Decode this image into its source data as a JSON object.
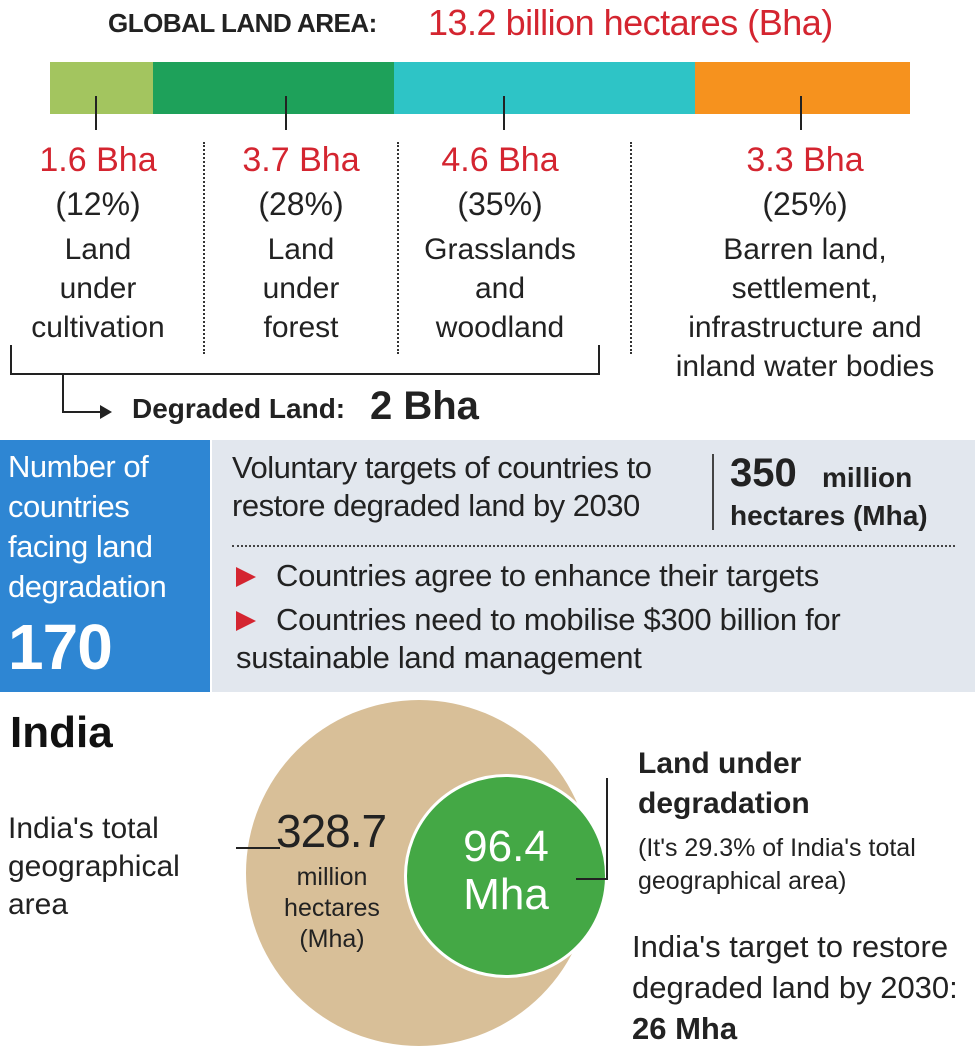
{
  "header": {
    "label": "GLOBAL LAND AREA:",
    "value": "13.2 billion hectares (Bha)"
  },
  "land_categories": [
    {
      "value": "1.6 Bha",
      "percent": "(12%)",
      "share": 0.12,
      "color": "#a3c55f",
      "description": [
        "Land",
        "under",
        "cultivation"
      ]
    },
    {
      "value": "3.7 Bha",
      "percent": "(28%)",
      "share": 0.28,
      "color": "#1ea15a",
      "description": [
        "Land",
        "under",
        "forest"
      ]
    },
    {
      "value": "4.6 Bha",
      "percent": "(35%)",
      "share": 0.35,
      "color": "#2ec4c6",
      "description": [
        "Grasslands",
        "and",
        "woodland"
      ]
    },
    {
      "value": "3.3 Bha",
      "percent": "(25%)",
      "share": 0.25,
      "color": "#f6921e",
      "description": [
        "Barren land,",
        "settlement,",
        "infrastructure and",
        "inland water bodies"
      ]
    }
  ],
  "degraded": {
    "label": "Degraded Land:",
    "value": "2 Bha"
  },
  "countries": {
    "label": "Number of countries facing land degradation",
    "value": "170"
  },
  "targets": {
    "description": "Voluntary targets of countries to restore degraded land by 2030",
    "value": "350",
    "million": "million",
    "unit": "hectares (Mha)",
    "bullets": [
      "Countries agree to enhance their targets",
      "Countries need to mobilise $300 billion for sustainable land management"
    ]
  },
  "india": {
    "title": "India",
    "total_label": "India's total geographical area",
    "total_value": "328.7",
    "total_unit": "million hectares (Mha)",
    "degraded_value": "96.4",
    "degraded_unit": "Mha",
    "degraded_label": "Land under degradation",
    "degraded_note": "(It's 29.3% of India's total geographical area)",
    "target_label": "India's target to restore degraded land by 2030:",
    "target_value": "26 Mha"
  },
  "colors": {
    "accent_red": "#d42530",
    "panel_blue": "#2e86d3",
    "panel_gray": "#e2e7ee",
    "india_total": "#d8bf98",
    "india_degraded": "#44a845"
  }
}
